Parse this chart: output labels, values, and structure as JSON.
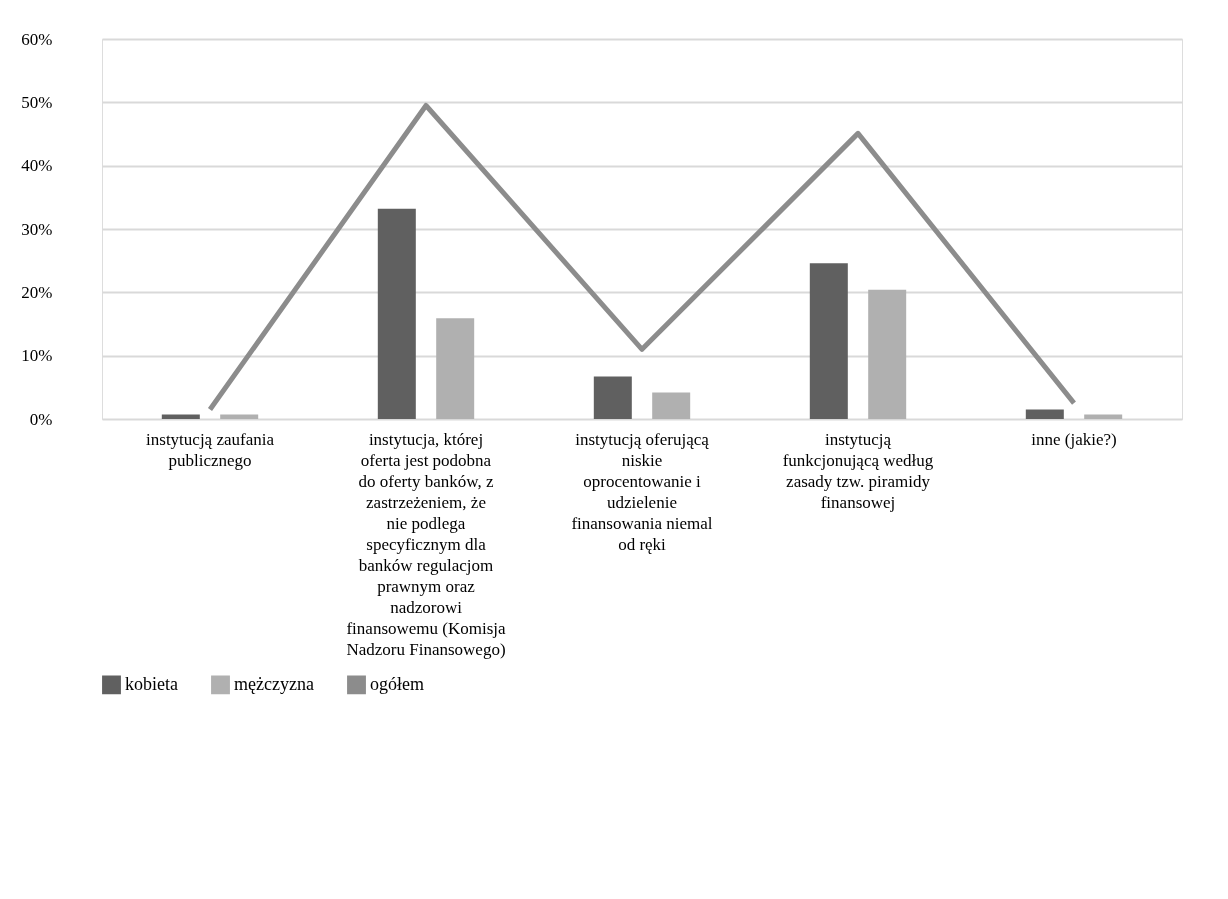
{
  "chart_data": {
    "type": "bar",
    "categories": [
      "instytucją zaufania publicznego",
      "instytucja, której oferta jest podobna do oferty banków, z zastrzeżeniem, że nie podlega specyficznym dla banków regulacjom prawnym oraz nadzorowi finansowemu (Komisja Nadzoru Finansowego)",
      "instytucją oferującą niskie oprocentowanie i udzielenie finansowania niemal od ręki",
      "instytucją funkcjonującą według zasady tzw. piramidy finansowej",
      "inne (jakie?)"
    ],
    "series": [
      {
        "name": "kobieta",
        "color": "#606060",
        "values": [
          0.7,
          33.2,
          6.7,
          24.6,
          1.5
        ]
      },
      {
        "name": "mężczyzna",
        "color": "#b0b0b0",
        "values": [
          0.7,
          15.9,
          4.2,
          20.4,
          0.7
        ]
      },
      {
        "name": "ogółem",
        "type": "line",
        "color": "#8c8c8c",
        "values": [
          1.5,
          49.5,
          11.0,
          45.1,
          2.5
        ]
      }
    ],
    "ylim": [
      0,
      60
    ],
    "yticks": [
      {
        "value": 0,
        "label": "0%"
      },
      {
        "value": 10,
        "label": "10%"
      },
      {
        "value": 20,
        "label": "20%"
      },
      {
        "value": 30,
        "label": "30%"
      },
      {
        "value": 40,
        "label": "40%"
      },
      {
        "value": 50,
        "label": "50%"
      },
      {
        "value": 60,
        "label": "60%"
      }
    ],
    "grid": "y",
    "legend": "bottom"
  }
}
